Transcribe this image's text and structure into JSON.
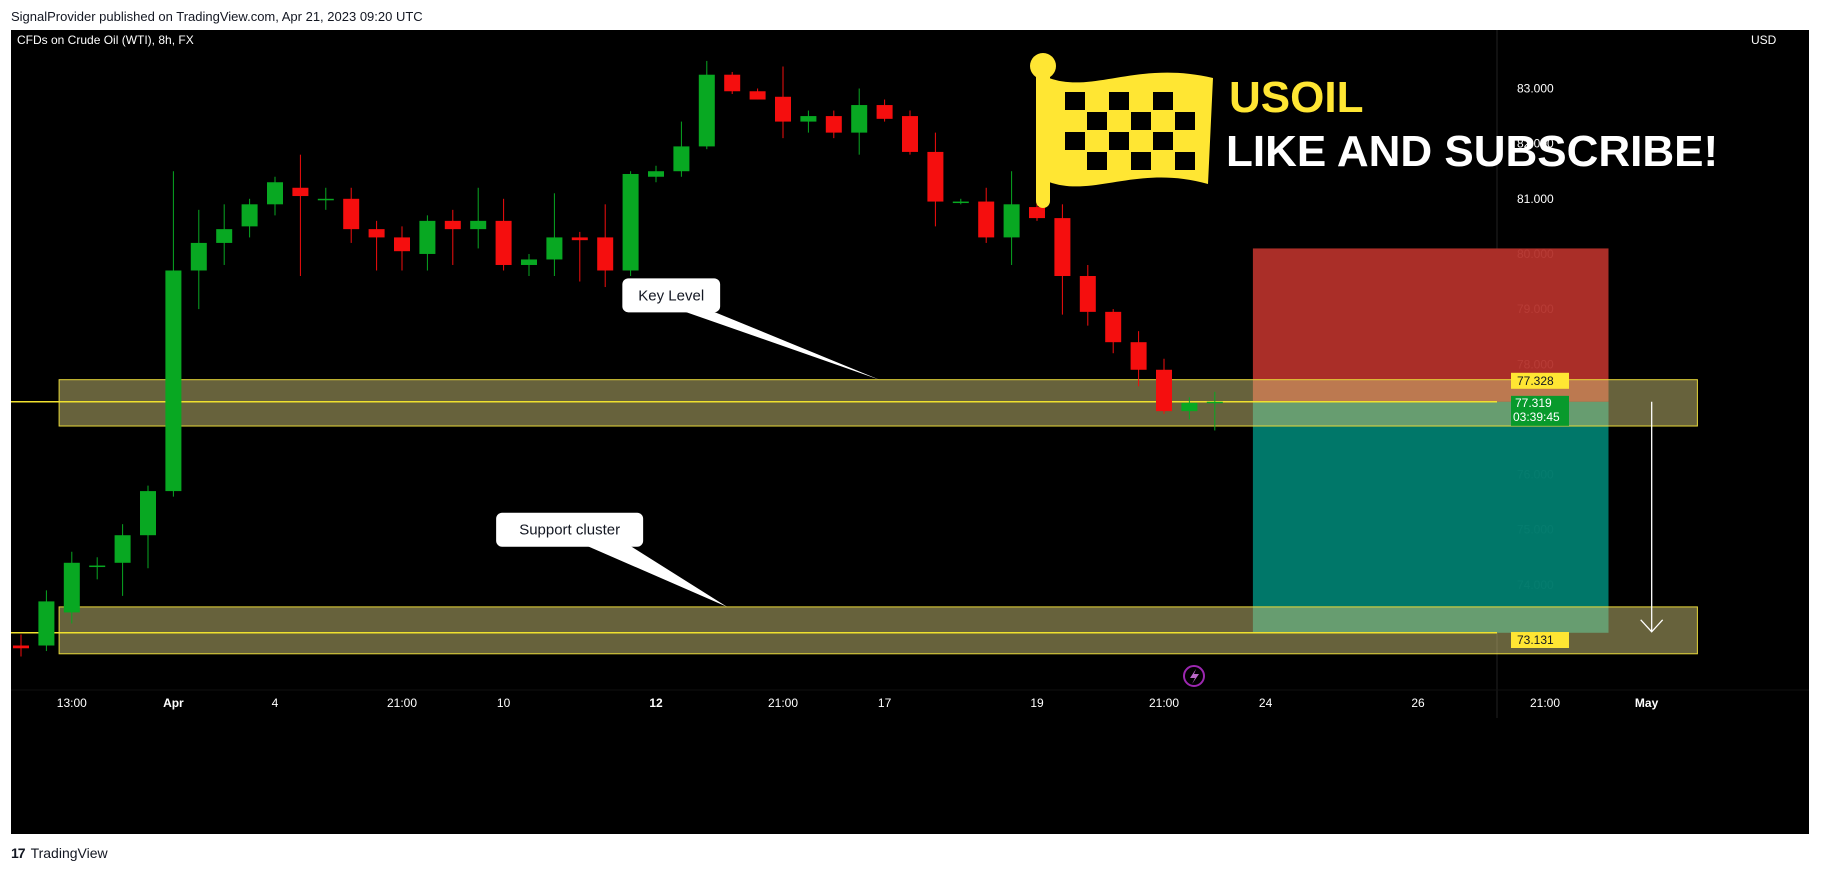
{
  "header": {
    "published_by": "SignalProvider published on TradingView.com, Apr 21, 2023 09:20 UTC"
  },
  "footer": {
    "logo_glyph": "17",
    "brand": "TradingView"
  },
  "chart_data": {
    "type": "candlestick",
    "title": "CFDs on Crude Oil (WTI), 8h, FX",
    "currency": "USD",
    "ylim": [
      72.6,
      84.2
    ],
    "y_ticks": [
      "83.000",
      "82.000",
      "81.000",
      "80.000",
      "79.000",
      "78.000",
      "76.000",
      "75.000",
      "74.000",
      "73.000"
    ],
    "x_ticks": [
      {
        "label": "13:00",
        "bar": 2
      },
      {
        "label": "Apr",
        "bar": 6,
        "bold": true
      },
      {
        "label": "4",
        "bar": 10
      },
      {
        "label": "21:00",
        "bar": 15
      },
      {
        "label": "10",
        "bar": 19
      },
      {
        "label": "12",
        "bar": 25,
        "bold": true
      },
      {
        "label": "21:00",
        "bar": 30
      },
      {
        "label": "17",
        "bar": 34
      },
      {
        "label": "19",
        "bar": 40
      },
      {
        "label": "21:00",
        "bar": 45
      },
      {
        "label": "24",
        "bar": 49
      },
      {
        "label": "26",
        "bar": 55
      },
      {
        "label": "21:00",
        "bar": 60
      },
      {
        "label": "May",
        "bar": 64,
        "bold": true
      }
    ],
    "candles": [
      {
        "o": 72.9,
        "h": 73.1,
        "l": 72.7,
        "c": 72.85
      },
      {
        "o": 72.9,
        "h": 73.9,
        "l": 72.8,
        "c": 73.7
      },
      {
        "o": 73.5,
        "h": 74.6,
        "l": 73.3,
        "c": 74.4
      },
      {
        "o": 74.35,
        "h": 74.5,
        "l": 74.1,
        "c": 74.35
      },
      {
        "o": 74.4,
        "h": 75.1,
        "l": 73.8,
        "c": 74.9
      },
      {
        "o": 74.9,
        "h": 75.8,
        "l": 74.3,
        "c": 75.7
      },
      {
        "o": 75.7,
        "h": 81.5,
        "l": 75.6,
        "c": 79.7
      },
      {
        "o": 79.7,
        "h": 80.8,
        "l": 79.0,
        "c": 80.2
      },
      {
        "o": 80.2,
        "h": 80.9,
        "l": 79.8,
        "c": 80.45
      },
      {
        "o": 80.5,
        "h": 81.0,
        "l": 80.3,
        "c": 80.9
      },
      {
        "o": 80.9,
        "h": 81.4,
        "l": 80.7,
        "c": 81.3
      },
      {
        "o": 81.2,
        "h": 81.8,
        "l": 79.6,
        "c": 81.05
      },
      {
        "o": 81.0,
        "h": 81.2,
        "l": 80.8,
        "c": 81.0
      },
      {
        "o": 81.0,
        "h": 81.2,
        "l": 80.2,
        "c": 80.45
      },
      {
        "o": 80.45,
        "h": 80.6,
        "l": 79.7,
        "c": 80.3
      },
      {
        "o": 80.3,
        "h": 80.5,
        "l": 79.7,
        "c": 80.05
      },
      {
        "o": 80.0,
        "h": 80.7,
        "l": 79.7,
        "c": 80.6
      },
      {
        "o": 80.6,
        "h": 80.8,
        "l": 79.8,
        "c": 80.45
      },
      {
        "o": 80.45,
        "h": 81.2,
        "l": 80.1,
        "c": 80.6
      },
      {
        "o": 80.6,
        "h": 81.0,
        "l": 79.7,
        "c": 79.8
      },
      {
        "o": 79.8,
        "h": 80.0,
        "l": 79.6,
        "c": 79.9
      },
      {
        "o": 79.9,
        "h": 81.1,
        "l": 79.6,
        "c": 80.3
      },
      {
        "o": 80.3,
        "h": 80.4,
        "l": 79.5,
        "c": 80.25
      },
      {
        "o": 80.3,
        "h": 80.9,
        "l": 79.4,
        "c": 79.7
      },
      {
        "o": 79.7,
        "h": 81.5,
        "l": 79.6,
        "c": 81.45
      },
      {
        "o": 81.4,
        "h": 81.6,
        "l": 81.3,
        "c": 81.5
      },
      {
        "o": 81.5,
        "h": 82.4,
        "l": 81.4,
        "c": 81.95
      },
      {
        "o": 81.95,
        "h": 83.5,
        "l": 81.9,
        "c": 83.25
      },
      {
        "o": 83.25,
        "h": 83.3,
        "l": 82.9,
        "c": 82.95
      },
      {
        "o": 82.95,
        "h": 83.0,
        "l": 82.8,
        "c": 82.8
      },
      {
        "o": 82.85,
        "h": 83.4,
        "l": 82.1,
        "c": 82.4
      },
      {
        "o": 82.4,
        "h": 82.6,
        "l": 82.2,
        "c": 82.5
      },
      {
        "o": 82.5,
        "h": 82.6,
        "l": 82.1,
        "c": 82.2
      },
      {
        "o": 82.2,
        "h": 83.0,
        "l": 81.8,
        "c": 82.7
      },
      {
        "o": 82.7,
        "h": 82.8,
        "l": 82.4,
        "c": 82.45
      },
      {
        "o": 82.5,
        "h": 82.6,
        "l": 81.8,
        "c": 81.85
      },
      {
        "o": 81.85,
        "h": 82.2,
        "l": 80.5,
        "c": 80.95
      },
      {
        "o": 80.95,
        "h": 81.0,
        "l": 80.9,
        "c": 80.95
      },
      {
        "o": 80.95,
        "h": 81.2,
        "l": 80.2,
        "c": 80.3
      },
      {
        "o": 80.3,
        "h": 81.5,
        "l": 79.8,
        "c": 80.9
      },
      {
        "o": 80.85,
        "h": 81.0,
        "l": 80.6,
        "c": 80.65
      },
      {
        "o": 80.65,
        "h": 80.9,
        "l": 78.9,
        "c": 79.6
      },
      {
        "o": 79.6,
        "h": 79.8,
        "l": 78.7,
        "c": 78.95
      },
      {
        "o": 78.95,
        "h": 79.0,
        "l": 78.2,
        "c": 78.4
      },
      {
        "o": 78.4,
        "h": 78.6,
        "l": 77.6,
        "c": 77.9
      },
      {
        "o": 77.9,
        "h": 78.1,
        "l": 77.1,
        "c": 77.15
      },
      {
        "o": 77.15,
        "h": 77.4,
        "l": 77.0,
        "c": 77.3
      },
      {
        "o": 77.3,
        "h": 77.5,
        "l": 76.8,
        "c": 77.32
      }
    ],
    "zones": [
      {
        "name": "key-level-zone",
        "top": 77.72,
        "bottom": 76.88,
        "bar_start": 1.5,
        "bar_end": 66
      },
      {
        "name": "support-zone",
        "top": 73.6,
        "bottom": 72.75,
        "bar_start": 1.5,
        "bar_end": 66
      }
    ],
    "horizontal_lines": [
      77.319,
      73.131
    ],
    "position": {
      "entry": 77.319,
      "stop": 80.1,
      "target": 73.131,
      "bar_start": 48.5,
      "bar_end": 62.5
    },
    "arrow": {
      "bar": 64.2,
      "from": 77.319,
      "to": 73.131
    },
    "callouts": [
      {
        "text": "Key Level",
        "price": 79.25,
        "bar": 25.6,
        "tip_price": 77.72,
        "tip_bar": 33.8
      },
      {
        "text": "Support cluster",
        "price": 75.0,
        "bar": 21.6,
        "tip_price": 73.6,
        "tip_bar": 27.8
      }
    ],
    "price_labels": [
      {
        "text": "77.328",
        "price": 77.7,
        "style": "yellow"
      },
      {
        "text": "77.319",
        "price": 77.3,
        "style": "green",
        "sub": "03:39:45"
      },
      {
        "text": "73.131",
        "price": 73.0,
        "style": "yellow"
      }
    ],
    "promo": {
      "line1": "USOIL",
      "line2": "LIKE AND SUBSCRIBE!"
    },
    "colors": {
      "up": "#08a822",
      "down": "#f50e0e",
      "zone_fill": "rgba(205,195,120,0.5)",
      "zone_stroke": "#e8d93a",
      "line": "#f0e12e",
      "stop": "#b3302a",
      "target": "#00796b",
      "flag": "#ffe633",
      "label_green": "#089a2c"
    },
    "bolt_icon": "lightning-icon"
  }
}
